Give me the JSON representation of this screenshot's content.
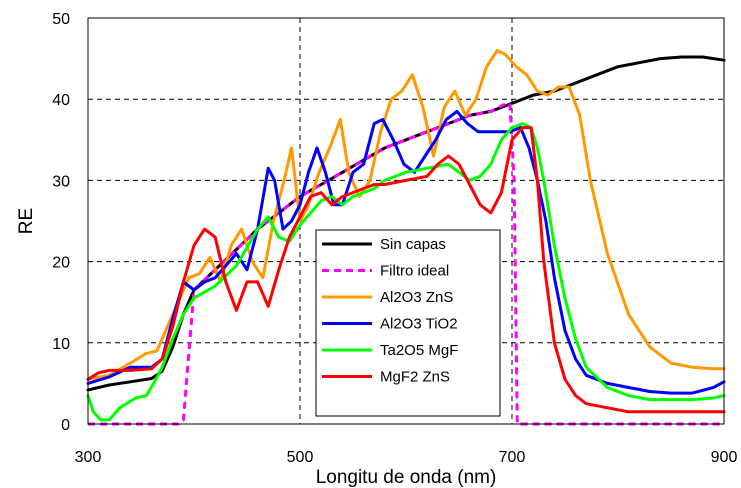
{
  "chart_data": {
    "type": "line",
    "xlabel": "Longitu de onda (nm)",
    "ylabel": "RE",
    "xlim": [
      300,
      900
    ],
    "ylim": [
      0,
      50
    ],
    "x_ticks": [
      "300",
      "500",
      "700",
      "900"
    ],
    "y_ticks": [
      "0",
      "10",
      "20",
      "30",
      "40",
      "50"
    ],
    "grid": "dashed",
    "legend_placement": "center-right",
    "series": [
      {
        "name": "Sin capas",
        "color": "#000000",
        "dashed": false,
        "x": [
          300,
          320,
          340,
          360,
          370,
          380,
          390,
          400,
          420,
          440,
          460,
          480,
          500,
          520,
          540,
          560,
          580,
          600,
          620,
          640,
          660,
          680,
          700,
          720,
          740,
          760,
          780,
          800,
          820,
          840,
          860,
          880,
          900
        ],
        "y": [
          4.2,
          4.8,
          5.2,
          5.6,
          6.5,
          9.5,
          13.5,
          16.5,
          19,
          21.5,
          24,
          26,
          28,
          29.5,
          31,
          32.5,
          34,
          35,
          36,
          37,
          38,
          38.5,
          39.5,
          40.5,
          41,
          42,
          43,
          44,
          44.5,
          45,
          45.2,
          45.2,
          44.8
        ]
      },
      {
        "name": "Filtro ideal",
        "color": "#ff00ff",
        "dashed": true,
        "x": [
          300,
          380,
          385,
          390,
          400,
          420,
          440,
          460,
          480,
          500,
          520,
          540,
          560,
          580,
          600,
          620,
          640,
          660,
          680,
          695,
          698,
          702,
          705,
          720,
          800,
          900
        ],
        "y": [
          0,
          0,
          0,
          0.5,
          16.5,
          19,
          21.5,
          24,
          26,
          28,
          29.5,
          31,
          32.5,
          34,
          35,
          36,
          37,
          38,
          38.5,
          39.5,
          39.5,
          30,
          0,
          0,
          0,
          0
        ]
      },
      {
        "name": "Al2O3 ZnS",
        "color": "#ff9900",
        "dashed": false,
        "x": [
          300,
          320,
          340,
          355,
          365,
          375,
          385,
          395,
          405,
          415,
          425,
          435,
          445,
          455,
          465,
          475,
          485,
          492,
          500,
          508,
          518,
          528,
          538,
          546,
          556,
          566,
          576,
          586,
          596,
          606,
          616,
          626,
          636,
          646,
          656,
          666,
          676,
          686,
          694,
          704,
          714,
          724,
          734,
          744,
          754,
          764,
          774,
          790,
          810,
          830,
          850,
          870,
          890,
          900
        ],
        "y": [
          5.5,
          6,
          7.5,
          8.7,
          9,
          12,
          15,
          18,
          18.5,
          20.5,
          17.5,
          22,
          24,
          20,
          18,
          25,
          30,
          34,
          25,
          27,
          31,
          34,
          37.5,
          31,
          28,
          30,
          36,
          40,
          41,
          43,
          39,
          33,
          39,
          41,
          38,
          40,
          44,
          46,
          45.5,
          44,
          43,
          41,
          40.5,
          41.5,
          41.5,
          38,
          30,
          21,
          13.5,
          9.5,
          7.5,
          7,
          6.8,
          6.8
        ]
      },
      {
        "name": "Al2O3 TiO2",
        "color": "#0000ff",
        "dashed": false,
        "x": [
          300,
          320,
          340,
          360,
          370,
          380,
          390,
          400,
          410,
          420,
          430,
          440,
          450,
          460,
          470,
          476,
          484,
          492,
          500,
          508,
          516,
          524,
          532,
          540,
          550,
          560,
          570,
          578,
          588,
          598,
          608,
          618,
          628,
          638,
          648,
          658,
          668,
          678,
          688,
          698,
          708,
          716,
          724,
          732,
          740,
          750,
          760,
          770,
          790,
          810,
          830,
          850,
          870,
          890,
          900
        ],
        "y": [
          5,
          5.8,
          7,
          7,
          8,
          13,
          17.5,
          16.5,
          17.5,
          18,
          19.5,
          21,
          19,
          24,
          31.5,
          30,
          24,
          25,
          27,
          31,
          34,
          31,
          27,
          27,
          31,
          32,
          37,
          37.5,
          35,
          32,
          31,
          33,
          35,
          37.5,
          38.5,
          37,
          36,
          36,
          36,
          36,
          36.5,
          34,
          30,
          25,
          18,
          11.5,
          8,
          6,
          5,
          4.5,
          4,
          3.8,
          3.8,
          4.5,
          5.2
        ]
      },
      {
        "name": "Ta2O5 MgF",
        "color": "#00ff00",
        "dashed": false,
        "x": [
          300,
          305,
          312,
          320,
          330,
          345,
          355,
          362,
          370,
          380,
          390,
          400,
          420,
          440,
          460,
          470,
          480,
          490,
          500,
          510,
          520,
          530,
          540,
          550,
          560,
          570,
          580,
          600,
          620,
          640,
          660,
          670,
          680,
          690,
          700,
          710,
          718,
          724,
          730,
          740,
          750,
          760,
          770,
          790,
          810,
          830,
          850,
          870,
          890,
          900
        ],
        "y": [
          3.5,
          1.5,
          0.5,
          0.5,
          2,
          3.2,
          3.5,
          5,
          7,
          10.5,
          13.5,
          15.5,
          17,
          19.5,
          24,
          25.5,
          23,
          22.5,
          24.5,
          26,
          27.5,
          28,
          27,
          28,
          28.5,
          29,
          30,
          31,
          31.5,
          32,
          30,
          30.5,
          32,
          35,
          36.5,
          37,
          36.5,
          34,
          30,
          22,
          15.5,
          10.5,
          7,
          4.5,
          3.5,
          3,
          3,
          3,
          3.2,
          3.5
        ]
      },
      {
        "name": "MgF2 ZnS",
        "color": "#ff0000",
        "dashed": false,
        "x": [
          300,
          310,
          320,
          340,
          360,
          370,
          380,
          390,
          400,
          410,
          420,
          430,
          440,
          450,
          460,
          470,
          480,
          490,
          500,
          510,
          520,
          530,
          540,
          550,
          560,
          570,
          580,
          600,
          620,
          630,
          640,
          650,
          660,
          670,
          680,
          690,
          700,
          710,
          718,
          724,
          730,
          740,
          750,
          760,
          770,
          790,
          810,
          830,
          850,
          870,
          890,
          900
        ],
        "y": [
          5.5,
          6.3,
          6.6,
          6.6,
          6.8,
          8,
          12,
          17.5,
          22,
          24,
          23,
          17.5,
          14,
          17.5,
          17.5,
          14.5,
          19,
          23,
          25.5,
          28,
          28.5,
          27,
          28,
          28.5,
          29,
          29.5,
          29.5,
          30,
          30.5,
          32,
          33,
          32,
          29.5,
          27,
          26,
          28.5,
          35,
          36.5,
          36.5,
          30,
          20,
          10,
          5.5,
          3.5,
          2.5,
          2,
          1.5,
          1.5,
          1.5,
          1.5,
          1.5,
          1.5
        ]
      }
    ]
  }
}
